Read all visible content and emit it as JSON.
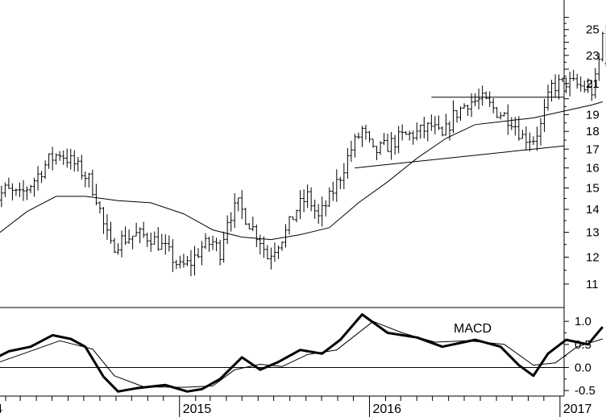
{
  "chart_data": [
    {
      "type": "ohlc",
      "panel": "price",
      "x_start": "2014-01",
      "x_end": "2017-04",
      "y_scale": "log",
      "ylim": [
        10.2,
        27.5
      ],
      "y_ticks": [
        11,
        12,
        13,
        14,
        15,
        16,
        17,
        18,
        19,
        21,
        23,
        25
      ],
      "grid": false,
      "price_path": [
        [
          "2014-01-03",
          14.2
        ],
        [
          "2014-01-31",
          14.9
        ],
        [
          "2014-02-28",
          14.6
        ],
        [
          "2014-03-28",
          15.4
        ],
        [
          "2014-04-25",
          16.4
        ],
        [
          "2014-05-16",
          16.8
        ],
        [
          "2014-06-13",
          16.2
        ],
        [
          "2014-07-11",
          15.4
        ],
        [
          "2014-07-25",
          14.6
        ],
        [
          "2014-08-08",
          13.3
        ],
        [
          "2014-08-22",
          12.4
        ],
        [
          "2014-09-12",
          12.7
        ],
        [
          "2014-10-10",
          12.9
        ],
        [
          "2014-11-07",
          12.8
        ],
        [
          "2014-12-05",
          12.3
        ],
        [
          "2015-01-02",
          11.6
        ],
        [
          "2015-01-23",
          11.8
        ],
        [
          "2015-02-13",
          12.4
        ],
        [
          "2015-03-06",
          12.6
        ],
        [
          "2015-03-20",
          12.2
        ],
        [
          "2015-04-03",
          13.6
        ],
        [
          "2015-04-24",
          14.2
        ],
        [
          "2015-05-15",
          13.4
        ],
        [
          "2015-06-05",
          12.7
        ],
        [
          "2015-06-19",
          12.0
        ],
        [
          "2015-07-03",
          12.4
        ],
        [
          "2015-07-24",
          13.0
        ],
        [
          "2015-08-14",
          14.0
        ],
        [
          "2015-09-04",
          14.6
        ],
        [
          "2015-09-25",
          13.6
        ],
        [
          "2015-10-16",
          14.5
        ],
        [
          "2015-11-06",
          15.6
        ],
        [
          "2015-11-27",
          17.0
        ],
        [
          "2015-12-18",
          18.1
        ],
        [
          "2016-01-08",
          16.8
        ],
        [
          "2016-02-05",
          17.2
        ],
        [
          "2016-03-04",
          17.7
        ],
        [
          "2016-04-01",
          17.9
        ],
        [
          "2016-04-29",
          18.3
        ],
        [
          "2016-05-20",
          17.6
        ],
        [
          "2016-06-10",
          18.9
        ],
        [
          "2016-07-08",
          19.8
        ],
        [
          "2016-08-05",
          19.9
        ],
        [
          "2016-09-02",
          19.2
        ],
        [
          "2016-09-30",
          18.7
        ],
        [
          "2016-10-21",
          17.7
        ],
        [
          "2016-11-11",
          17.6
        ],
        [
          "2016-11-25",
          18.3
        ],
        [
          "2016-12-16",
          20.8
        ],
        [
          "2017-01-13",
          21.1
        ],
        [
          "2017-02-10",
          20.8
        ],
        [
          "2017-03-03",
          20.5
        ],
        [
          "2017-03-10",
          21.2
        ],
        [
          "2017-03-17",
          22.6
        ],
        [
          "2017-03-24",
          24.6
        ]
      ],
      "moving_average": [
        [
          "2014-01-03",
          12.7
        ],
        [
          "2014-03-14",
          13.9
        ],
        [
          "2014-05-09",
          14.6
        ],
        [
          "2014-07-04",
          14.6
        ],
        [
          "2014-09-05",
          14.4
        ],
        [
          "2014-11-07",
          14.3
        ],
        [
          "2015-01-09",
          13.8
        ],
        [
          "2015-03-06",
          13.1
        ],
        [
          "2015-05-01",
          12.8
        ],
        [
          "2015-06-26",
          12.7
        ],
        [
          "2015-08-21",
          12.9
        ],
        [
          "2015-10-16",
          13.2
        ],
        [
          "2015-12-11",
          14.3
        ],
        [
          "2016-02-05",
          15.3
        ],
        [
          "2016-04-01",
          16.5
        ],
        [
          "2016-05-27",
          17.6
        ],
        [
          "2016-07-22",
          18.4
        ],
        [
          "2016-09-16",
          18.6
        ],
        [
          "2016-11-11",
          18.8
        ],
        [
          "2017-01-06",
          19.2
        ],
        [
          "2017-03-03",
          19.6
        ],
        [
          "2017-03-24",
          19.8
        ]
      ],
      "trendlines": [
        {
          "points": [
            [
              "2015-12-04",
              16.0
            ],
            [
              "2017-04-28",
              17.5
            ]
          ]
        },
        {
          "points": [
            [
              "2016-04-29",
              20.1
            ],
            [
              "2017-04-28",
              20.1
            ]
          ]
        }
      ]
    },
    {
      "type": "line",
      "panel": "macd",
      "title": "MACD",
      "ylim": [
        -0.62,
        1.3
      ],
      "y_ticks": [
        -0.5,
        0.0,
        0.5,
        1.0
      ],
      "zero_line": true,
      "x_ticks": [
        "2015",
        "2016",
        "2017"
      ],
      "series": [
        {
          "values": [
            [
              "2014-01-03",
              0.15
            ],
            [
              "2014-02-07",
              0.35
            ],
            [
              "2014-03-21",
              0.45
            ],
            [
              "2014-05-02",
              0.7
            ],
            [
              "2014-06-06",
              0.62
            ],
            [
              "2014-07-04",
              0.45
            ],
            [
              "2014-08-08",
              -0.2
            ],
            [
              "2014-09-05",
              -0.52
            ],
            [
              "2014-10-10",
              -0.45
            ],
            [
              "2014-12-05",
              -0.38
            ],
            [
              "2015-01-16",
              -0.52
            ],
            [
              "2015-02-13",
              -0.47
            ],
            [
              "2015-03-20",
              -0.25
            ],
            [
              "2015-05-01",
              0.22
            ],
            [
              "2015-06-05",
              -0.05
            ],
            [
              "2015-07-10",
              0.12
            ],
            [
              "2015-08-21",
              0.38
            ],
            [
              "2015-10-02",
              0.3
            ],
            [
              "2015-11-06",
              0.6
            ],
            [
              "2015-12-18",
              1.15
            ],
            [
              "2016-02-05",
              0.75
            ],
            [
              "2016-04-01",
              0.65
            ],
            [
              "2016-05-20",
              0.45
            ],
            [
              "2016-07-22",
              0.6
            ],
            [
              "2016-09-09",
              0.45
            ],
            [
              "2016-10-14",
              0.05
            ],
            [
              "2016-11-11",
              -0.18
            ],
            [
              "2016-12-09",
              0.3
            ],
            [
              "2017-01-13",
              0.6
            ],
            [
              "2017-02-24",
              0.5
            ],
            [
              "2017-03-24",
              0.88
            ]
          ]
        },
        {
          "values": [
            [
              "2014-01-03",
              0.05
            ],
            [
              "2014-03-07",
              0.3
            ],
            [
              "2014-05-16",
              0.58
            ],
            [
              "2014-07-18",
              0.4
            ],
            [
              "2014-08-29",
              -0.18
            ],
            [
              "2014-10-24",
              -0.42
            ],
            [
              "2015-01-09",
              -0.43
            ],
            [
              "2015-03-06",
              -0.4
            ],
            [
              "2015-04-17",
              -0.05
            ],
            [
              "2015-06-05",
              0.07
            ],
            [
              "2015-07-17",
              0.02
            ],
            [
              "2015-09-04",
              0.28
            ],
            [
              "2015-10-30",
              0.38
            ],
            [
              "2016-01-08",
              1.0
            ],
            [
              "2016-03-04",
              0.75
            ],
            [
              "2016-05-06",
              0.55
            ],
            [
              "2016-07-08",
              0.58
            ],
            [
              "2016-09-16",
              0.5
            ],
            [
              "2016-11-11",
              0.05
            ],
            [
              "2016-12-23",
              0.1
            ],
            [
              "2017-02-03",
              0.45
            ],
            [
              "2017-03-24",
              0.62
            ]
          ]
        }
      ]
    }
  ],
  "colors": {
    "background": "#ffffff",
    "ink": "#000000"
  }
}
